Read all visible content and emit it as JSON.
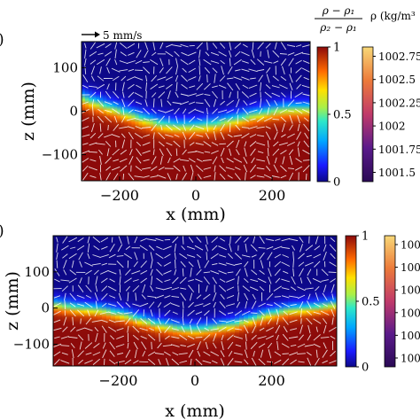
{
  "figure": {
    "scale_arrow_label": "5 mm/s",
    "ratio_label": {
      "num": "ρ − ρ₁",
      "den": "ρ₂ − ρ₁"
    },
    "density_label": "ρ (kg/m³"
  },
  "chart_data": [
    {
      "type": "heatmap",
      "panel": "top",
      "xlabel": "x (mm)",
      "ylabel": "z (mm)",
      "xlim": [
        -300,
        300
      ],
      "ylim": [
        -160,
        160
      ],
      "xticks": [
        -200,
        0,
        200
      ],
      "yticks": [
        100,
        0,
        -100
      ],
      "interface": {
        "x": [
          -300,
          -250,
          -200,
          -150,
          -100,
          -50,
          0,
          50,
          100,
          150,
          200,
          250,
          300
        ],
        "z": [
          30,
          15,
          0,
          -15,
          -28,
          -35,
          -35,
          -30,
          -20,
          -10,
          0,
          5,
          5
        ]
      },
      "colorbar_ratio": {
        "range": [
          0,
          1
        ],
        "ticks": [
          1,
          0.5,
          0
        ]
      },
      "colorbar_density": {
        "range": [
          1001.4,
          1002.85
        ],
        "ticks": [
          "1002.75",
          "1002.5",
          "1002.25",
          "1002",
          "1001.75",
          "1001.5"
        ]
      }
    },
    {
      "type": "heatmap",
      "panel": "bottom",
      "xlabel": "x (mm)",
      "ylabel": "z (mm)",
      "xlim": [
        -370,
        370
      ],
      "ylim": [
        -160,
        200
      ],
      "xticks": [
        -200,
        0,
        200
      ],
      "yticks": [
        100,
        0,
        -100
      ],
      "interface": {
        "x": [
          -370,
          -300,
          -250,
          -200,
          -150,
          -100,
          -50,
          0,
          50,
          100,
          150,
          200,
          250,
          300,
          370
        ],
        "z": [
          10,
          0,
          -5,
          -15,
          -30,
          -45,
          -55,
          -60,
          -55,
          -45,
          -30,
          -15,
          -5,
          0,
          10
        ]
      },
      "colorbar_ratio": {
        "range": [
          0,
          1
        ],
        "ticks": [
          1,
          0.5,
          0
        ]
      },
      "colorbar_density": {
        "ticks": [
          "100",
          "100",
          "100",
          "100",
          "100",
          "100"
        ]
      }
    }
  ]
}
